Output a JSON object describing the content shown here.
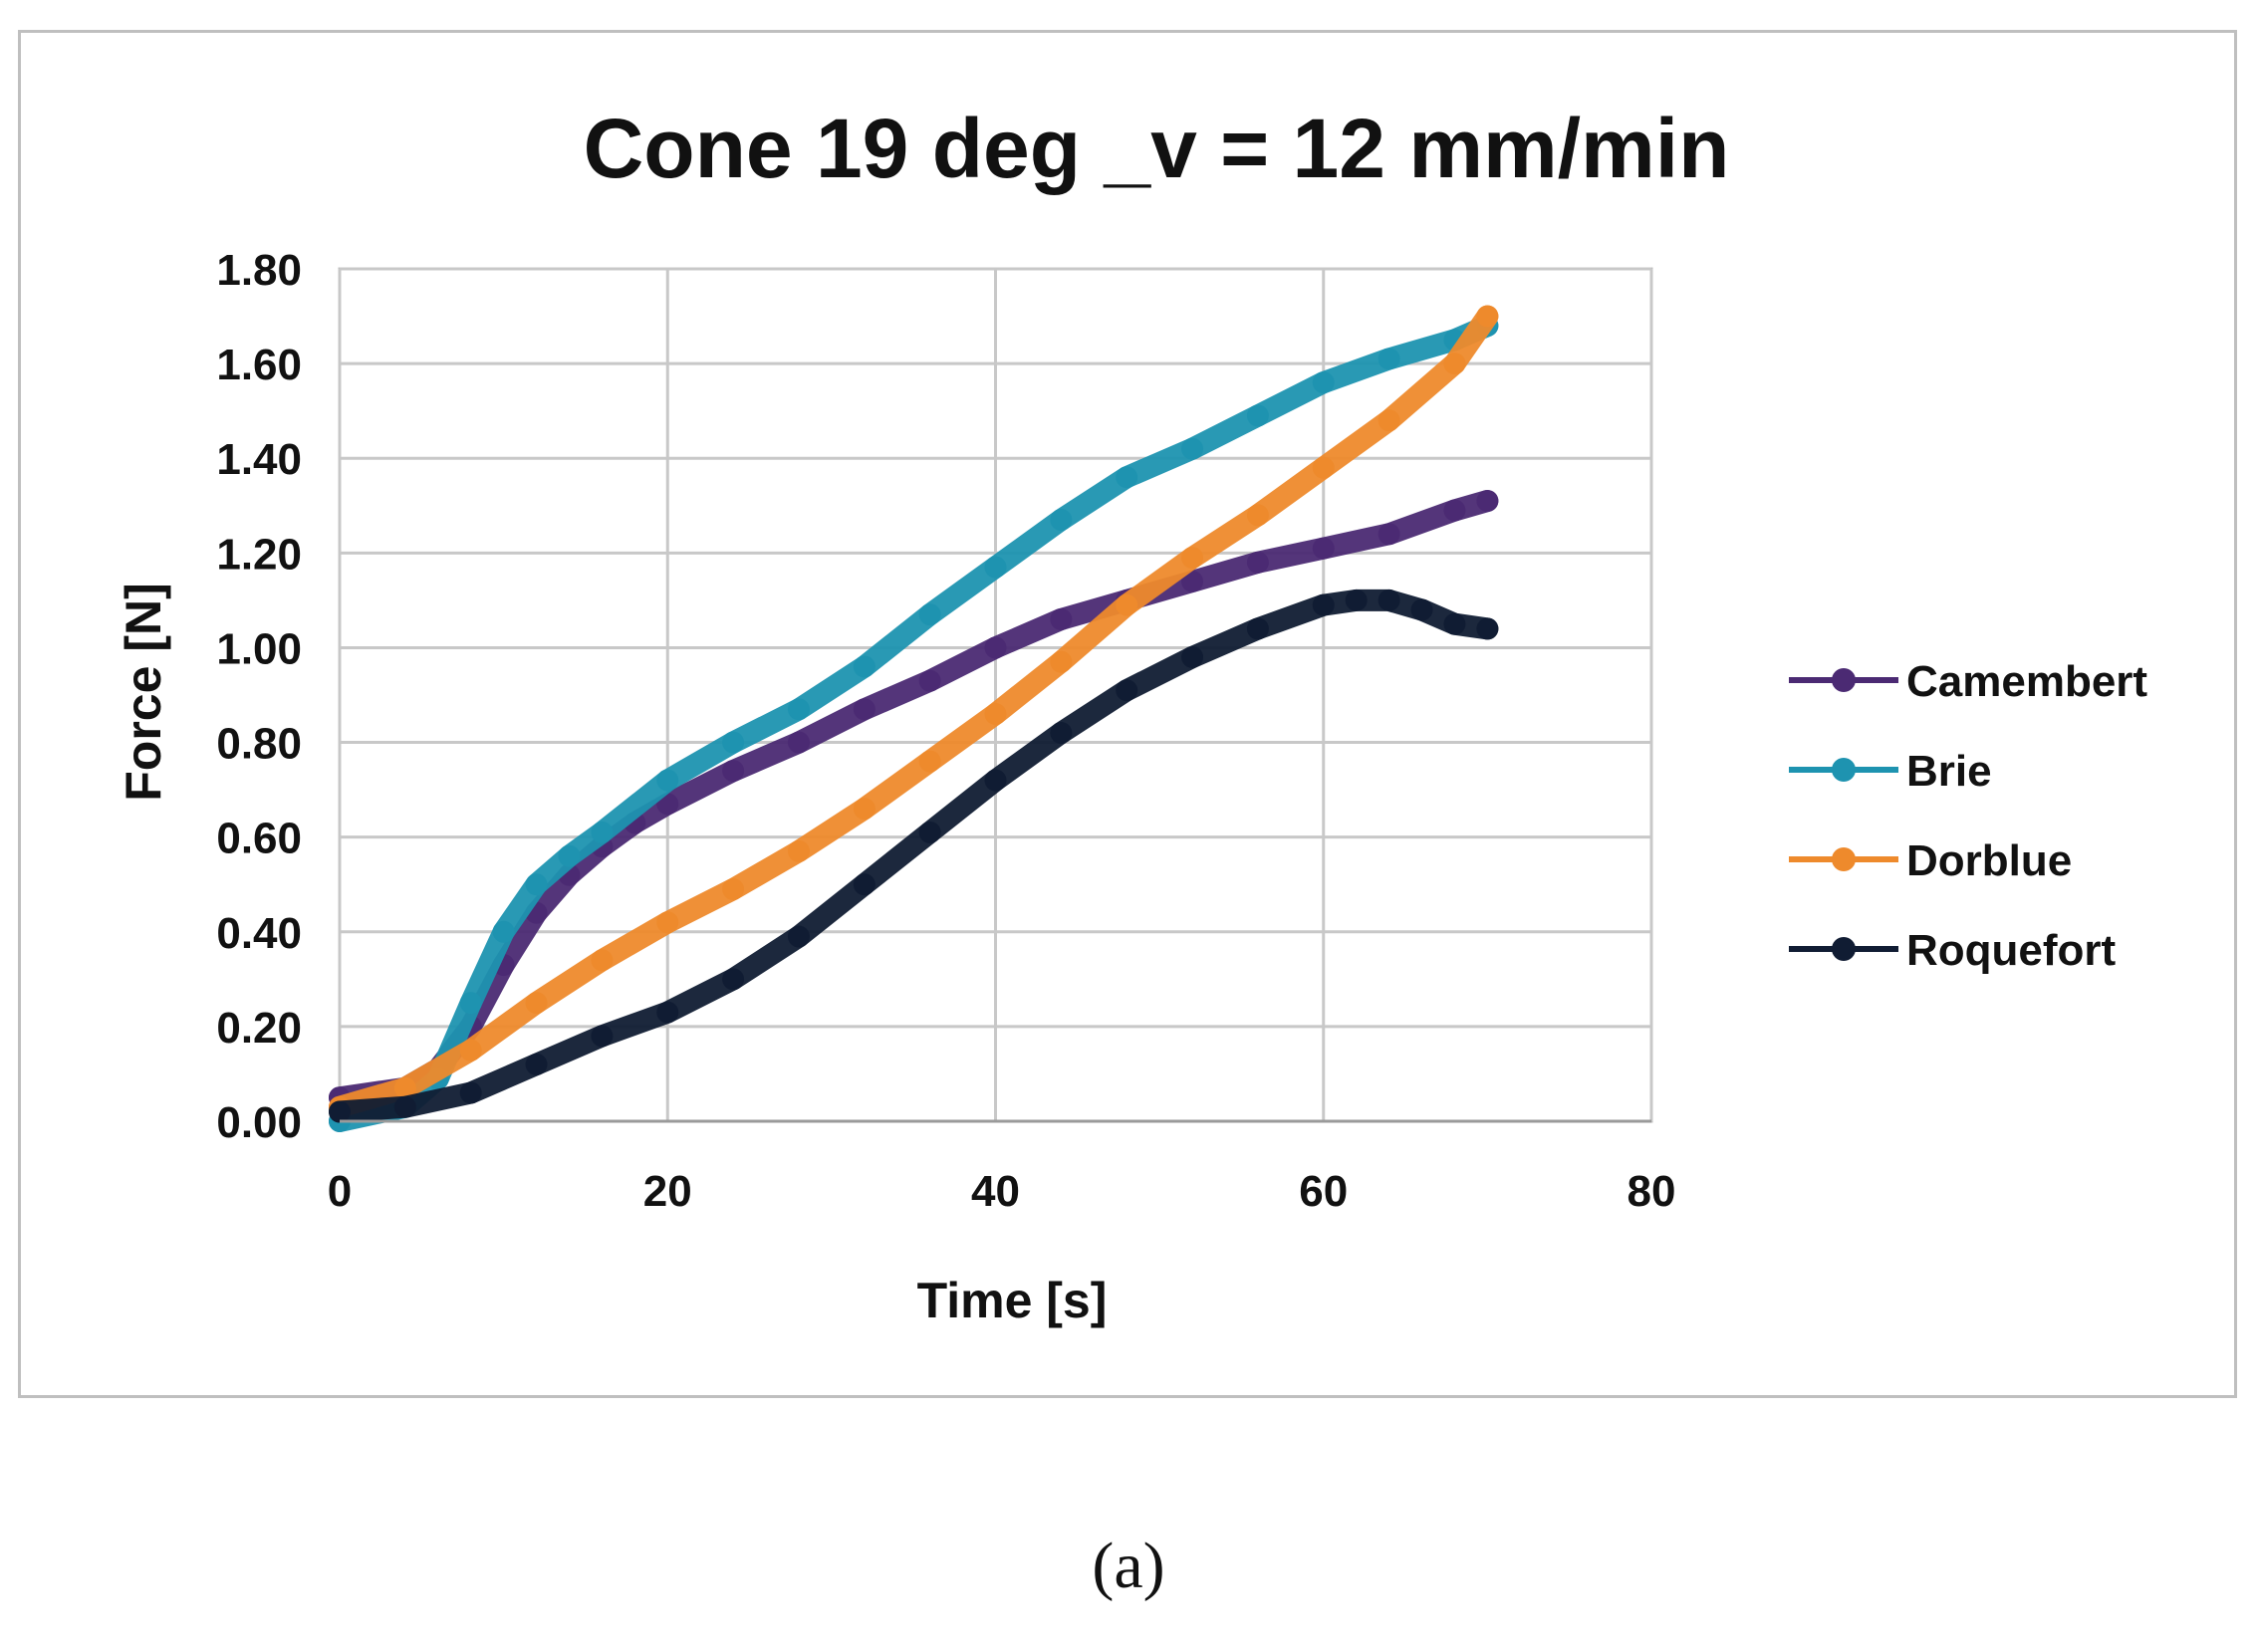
{
  "chart_data": {
    "type": "line",
    "title": "Cone 19 deg _v = 12 mm/min",
    "xlabel": "Time [s]",
    "ylabel": "Force [N]",
    "xlim": [
      0,
      80
    ],
    "ylim": [
      0,
      1.8
    ],
    "xticks": [
      0,
      20,
      40,
      60,
      80
    ],
    "xtick_labels": [
      "0",
      "20",
      "40",
      "60",
      "80"
    ],
    "yticks": [
      0,
      0.2,
      0.4,
      0.6,
      0.8,
      1.0,
      1.2,
      1.4,
      1.6,
      1.8
    ],
    "ytick_labels": [
      "0.00",
      "0.20",
      "0.40",
      "0.60",
      "0.80",
      "1.00",
      "1.20",
      "1.40",
      "1.60",
      "1.80"
    ],
    "grid": true,
    "legend_position": "right",
    "series": [
      {
        "name": "Camembert",
        "color": "#4b2a73",
        "x": [
          0,
          4,
          6,
          8,
          10,
          12,
          14,
          16,
          18,
          20,
          24,
          28,
          32,
          36,
          40,
          44,
          48,
          52,
          56,
          60,
          64,
          68,
          70
        ],
        "y": [
          0.05,
          0.07,
          0.11,
          0.2,
          0.33,
          0.44,
          0.52,
          0.58,
          0.63,
          0.67,
          0.74,
          0.8,
          0.87,
          0.93,
          1.0,
          1.06,
          1.1,
          1.14,
          1.18,
          1.21,
          1.24,
          1.29,
          1.31
        ]
      },
      {
        "name": "Brie",
        "color": "#1e93b0",
        "x": [
          0,
          4,
          6,
          8,
          10,
          12,
          14,
          16,
          20,
          24,
          28,
          32,
          36,
          40,
          44,
          48,
          52,
          56,
          60,
          64,
          68,
          70
        ],
        "y": [
          0.0,
          0.03,
          0.09,
          0.25,
          0.4,
          0.5,
          0.56,
          0.61,
          0.72,
          0.8,
          0.87,
          0.96,
          1.07,
          1.17,
          1.27,
          1.36,
          1.42,
          1.49,
          1.56,
          1.61,
          1.65,
          1.68
        ]
      },
      {
        "name": "Dorblue",
        "color": "#ee8a2c",
        "x": [
          0,
          4,
          8,
          12,
          16,
          20,
          24,
          28,
          32,
          36,
          40,
          44,
          48,
          52,
          56,
          60,
          64,
          68,
          70
        ],
        "y": [
          0.03,
          0.07,
          0.15,
          0.25,
          0.34,
          0.42,
          0.49,
          0.57,
          0.66,
          0.76,
          0.86,
          0.97,
          1.09,
          1.19,
          1.28,
          1.38,
          1.48,
          1.6,
          1.7
        ]
      },
      {
        "name": "Roquefort",
        "color": "#101c33",
        "x": [
          0,
          4,
          8,
          12,
          16,
          20,
          24,
          28,
          32,
          36,
          40,
          44,
          48,
          52,
          56,
          60,
          62,
          64,
          66,
          68,
          70
        ],
        "y": [
          0.02,
          0.03,
          0.06,
          0.12,
          0.18,
          0.23,
          0.3,
          0.39,
          0.5,
          0.61,
          0.72,
          0.82,
          0.91,
          0.98,
          1.04,
          1.09,
          1.1,
          1.1,
          1.08,
          1.05,
          1.04
        ]
      }
    ]
  },
  "caption": "(a)"
}
